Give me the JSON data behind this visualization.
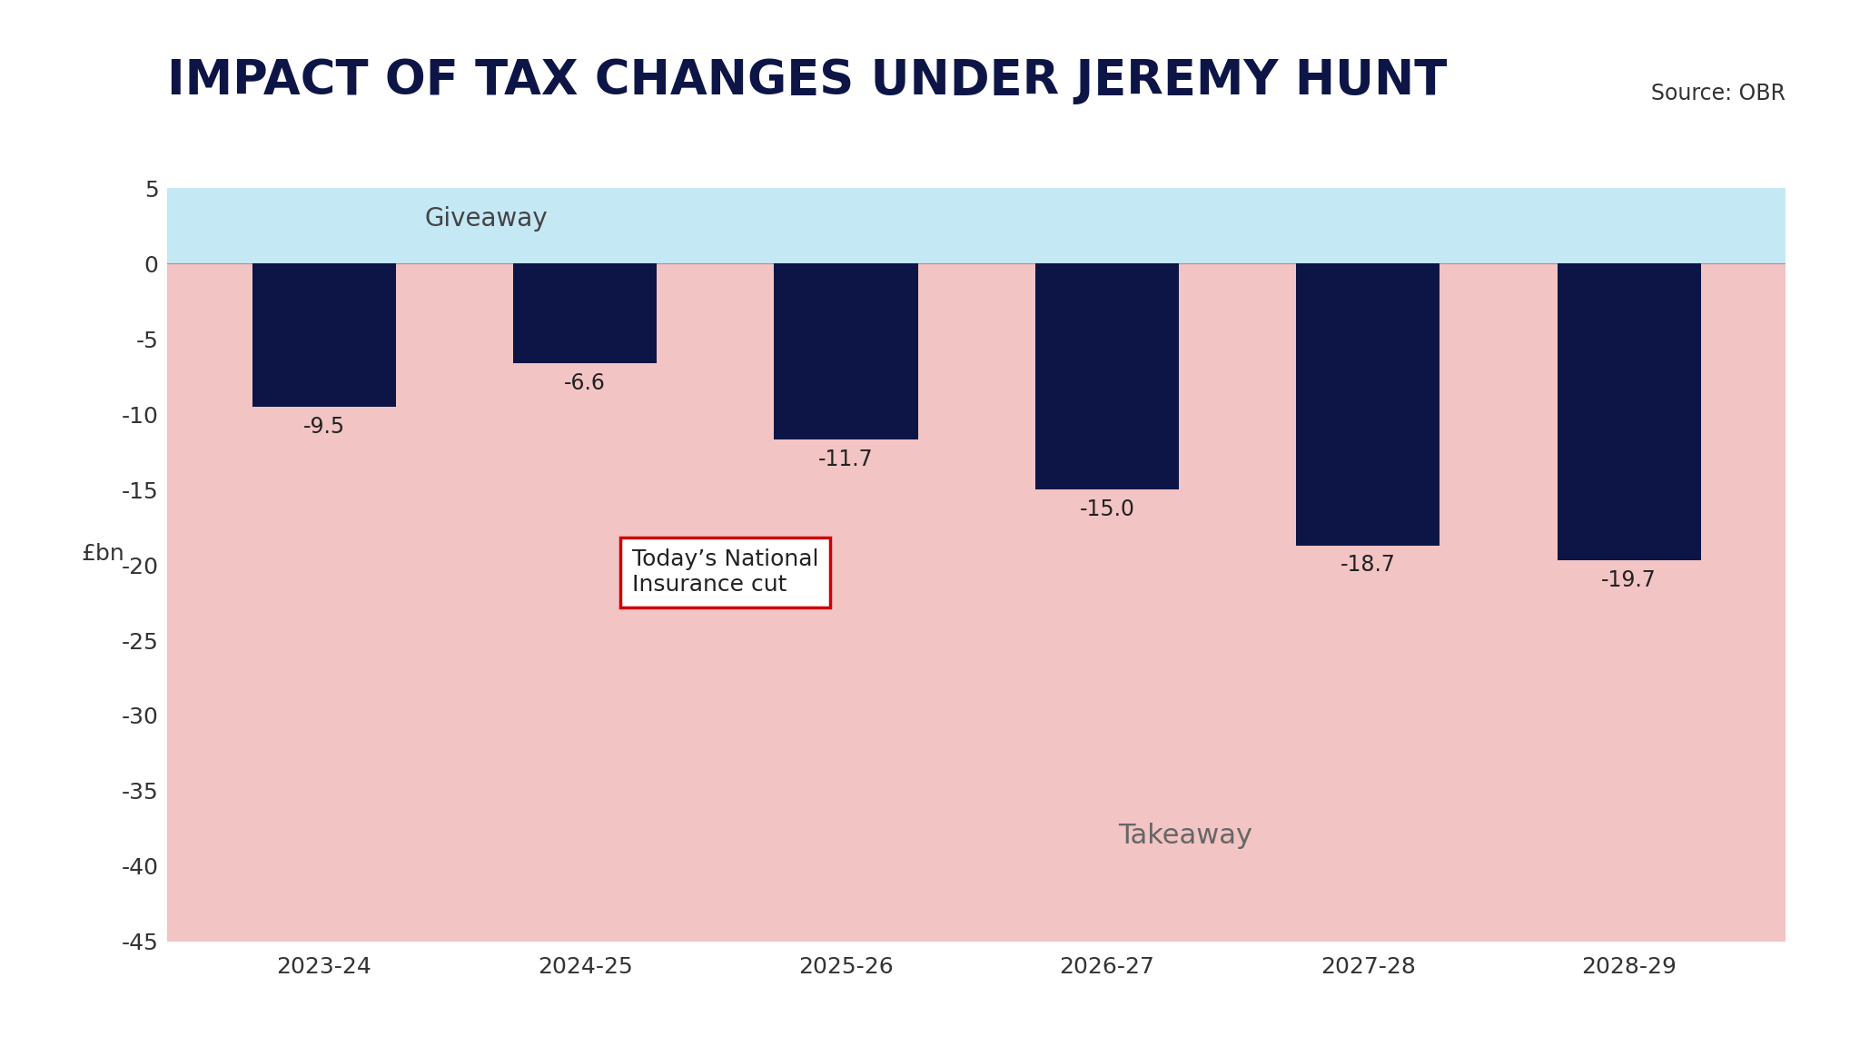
{
  "title": "IMPACT OF TAX CHANGES UNDER JEREMY HUNT",
  "source": "Source: OBR",
  "ylabel": "£bn",
  "categories": [
    "2023-24",
    "2024-25",
    "2025-26",
    "2026-27",
    "2027-28",
    "2028-29"
  ],
  "values": [
    -9.5,
    -6.6,
    -11.7,
    -15.0,
    -18.7,
    -19.7
  ],
  "bar_color": "#0d1547",
  "giveaway_color": "#c5e8f5",
  "takeaway_color": "#f2c4c4",
  "giveaway_label": "Giveaway",
  "takeaway_label": "Takeaway",
  "annotation_text": "Today’s National\nInsurance cut",
  "annotation_box_color": "white",
  "annotation_border_color": "#cc0000",
  "ylim_min": -45,
  "ylim_max": 5,
  "yticks": [
    5,
    0,
    -5,
    -10,
    -15,
    -20,
    -25,
    -30,
    -35,
    -40,
    -45
  ],
  "bg_color": "#ffffff",
  "title_color": "#0d1547",
  "tick_label_color": "#333333",
  "bar_label_color": "#222222",
  "value_fontsize": 17,
  "title_fontsize": 38,
  "tick_fontsize": 18,
  "ylabel_fontsize": 18,
  "source_fontsize": 17,
  "annotation_fontsize": 18,
  "giveaway_fontsize": 20,
  "takeaway_fontsize": 22
}
